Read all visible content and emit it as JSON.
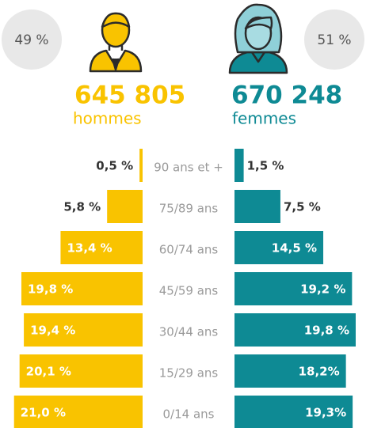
{
  "chart_data": {
    "type": "pyramid",
    "categories": [
      "90 ans et +",
      "75/89 ans",
      "60/74 ans",
      "45/59 ans",
      "30/44 ans",
      "15/29 ans",
      "0/14 ans"
    ],
    "xlim": [
      0,
      22
    ],
    "series": [
      {
        "name": "hommes",
        "color": "#f9c300",
        "share": 49,
        "share_label": "49 %",
        "total": 645805,
        "total_label": "645 805",
        "values": [
          0.5,
          5.8,
          13.4,
          19.8,
          19.4,
          20.1,
          21.0
        ],
        "value_labels": [
          "0,5 %",
          "5,8 %",
          "13,4 %",
          "19,8 %",
          "19,4 %",
          "20,1 %",
          "21,0 %"
        ]
      },
      {
        "name": "femmes",
        "color": "#0e8a94",
        "share": 51,
        "share_label": "51 %",
        "total": 670248,
        "total_label": "670 248",
        "values": [
          1.5,
          7.5,
          14.5,
          19.2,
          19.8,
          18.2,
          19.3
        ],
        "value_labels": [
          "1,5 %",
          "7,5 %",
          "14,5 %",
          "19,2 %",
          "19,8 %",
          "18,2%",
          "19,3%"
        ]
      }
    ]
  }
}
